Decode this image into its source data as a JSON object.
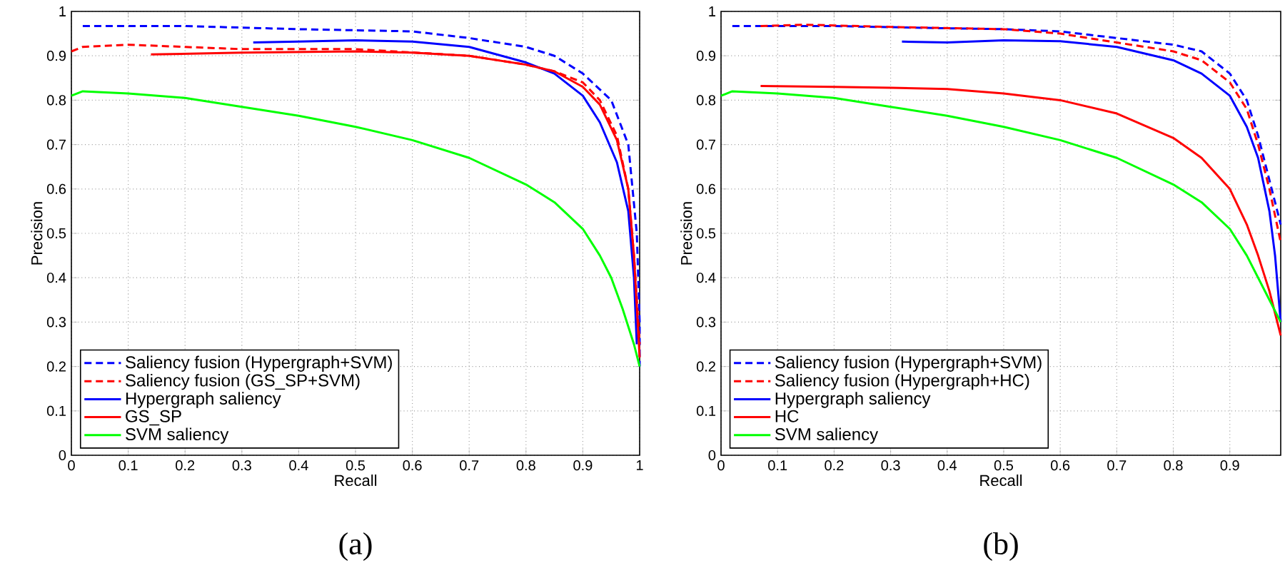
{
  "chart_data": [
    {
      "type": "line",
      "annotations": [
        "(a)"
      ],
      "xlabel": "Recall",
      "ylabel": "Precision",
      "xlim": [
        0,
        1
      ],
      "ylim": [
        0,
        1
      ],
      "xticks": [
        0,
        0.1,
        0.2,
        0.3,
        0.4,
        0.5,
        0.6,
        0.7,
        0.8,
        0.9,
        1
      ],
      "yticks": [
        0,
        0.1,
        0.2,
        0.3,
        0.4,
        0.5,
        0.6,
        0.7,
        0.8,
        0.9,
        1
      ],
      "grid": true,
      "legend": "bottom left",
      "series": [
        {
          "name": "Saliency fusion (Hypergraph+SVM)",
          "color": "#0000ff",
          "line_style": "dashed",
          "x": [
            0.02,
            0.2,
            0.4,
            0.6,
            0.7,
            0.8,
            0.85,
            0.9,
            0.95,
            0.98,
            0.995,
            1.0,
            1.0
          ],
          "values": [
            0.967,
            0.967,
            0.96,
            0.955,
            0.94,
            0.92,
            0.9,
            0.86,
            0.8,
            0.7,
            0.5,
            0.3,
            0.2
          ]
        },
        {
          "name": "Saliency fusion (GS_SP+SVM)",
          "color": "#ff0000",
          "line_style": "dashed",
          "x": [
            0,
            0.02,
            0.1,
            0.2,
            0.3,
            0.5,
            0.7,
            0.8,
            0.85,
            0.9,
            0.93,
            0.96,
            0.98,
            0.99,
            1.0
          ],
          "values": [
            0.91,
            0.92,
            0.925,
            0.92,
            0.915,
            0.915,
            0.9,
            0.88,
            0.865,
            0.84,
            0.8,
            0.72,
            0.6,
            0.45,
            0.25
          ]
        },
        {
          "name": "Hypergraph saliency",
          "color": "#0000ff",
          "line_style": "solid",
          "x": [
            0.32,
            0.4,
            0.5,
            0.6,
            0.7,
            0.8,
            0.85,
            0.9,
            0.93,
            0.96,
            0.98,
            0.99,
            0.995
          ],
          "values": [
            0.93,
            0.932,
            0.935,
            0.932,
            0.92,
            0.885,
            0.86,
            0.81,
            0.75,
            0.66,
            0.55,
            0.4,
            0.25
          ]
        },
        {
          "name": "GS_SP",
          "color": "#ff0000",
          "line_style": "solid",
          "x": [
            0.14,
            0.3,
            0.5,
            0.6,
            0.7,
            0.8,
            0.85,
            0.9,
            0.93,
            0.96,
            0.98,
            0.99,
            1.0
          ],
          "values": [
            0.903,
            0.907,
            0.91,
            0.907,
            0.9,
            0.88,
            0.865,
            0.83,
            0.79,
            0.71,
            0.6,
            0.45,
            0.22
          ]
        },
        {
          "name": "SVM saliency",
          "color": "#00ff00",
          "line_style": "solid",
          "x": [
            0,
            0.02,
            0.1,
            0.2,
            0.3,
            0.4,
            0.5,
            0.6,
            0.7,
            0.8,
            0.85,
            0.9,
            0.93,
            0.95,
            0.97,
            0.99,
            1.0
          ],
          "values": [
            0.81,
            0.82,
            0.815,
            0.805,
            0.785,
            0.765,
            0.74,
            0.71,
            0.67,
            0.61,
            0.57,
            0.51,
            0.45,
            0.4,
            0.33,
            0.25,
            0.2
          ]
        }
      ]
    },
    {
      "type": "line",
      "annotations": [
        "(b)"
      ],
      "xlabel": "Recall",
      "ylabel": "Precision",
      "xlim": [
        0,
        0.99
      ],
      "ylim": [
        0,
        1
      ],
      "xticks": [
        0,
        0.1,
        0.2,
        0.3,
        0.4,
        0.5,
        0.6,
        0.7,
        0.8,
        0.9
      ],
      "yticks": [
        0,
        0.1,
        0.2,
        0.3,
        0.4,
        0.5,
        0.6,
        0.7,
        0.8,
        0.9,
        1
      ],
      "grid": true,
      "legend": "bottom left",
      "series": [
        {
          "name": "Saliency fusion (Hypergraph+SVM)",
          "color": "#0000ff",
          "line_style": "dashed",
          "x": [
            0.02,
            0.2,
            0.4,
            0.5,
            0.6,
            0.7,
            0.8,
            0.85,
            0.9,
            0.93,
            0.95,
            0.97,
            0.99
          ],
          "values": [
            0.967,
            0.967,
            0.962,
            0.96,
            0.955,
            0.94,
            0.925,
            0.91,
            0.86,
            0.8,
            0.72,
            0.62,
            0.52
          ]
        },
        {
          "name": "Saliency fusion (Hypergraph+HC)",
          "color": "#ff0000",
          "line_style": "dashed",
          "x": [
            0.07,
            0.15,
            0.3,
            0.5,
            0.6,
            0.7,
            0.8,
            0.85,
            0.9,
            0.93,
            0.95,
            0.97,
            0.99
          ],
          "values": [
            0.967,
            0.97,
            0.965,
            0.96,
            0.95,
            0.93,
            0.91,
            0.89,
            0.84,
            0.78,
            0.7,
            0.6,
            0.48
          ]
        },
        {
          "name": "Hypergraph saliency",
          "color": "#0000ff",
          "line_style": "solid",
          "x": [
            0.32,
            0.4,
            0.5,
            0.6,
            0.7,
            0.8,
            0.85,
            0.9,
            0.93,
            0.95,
            0.97,
            0.98,
            0.99
          ],
          "values": [
            0.932,
            0.93,
            0.935,
            0.933,
            0.92,
            0.89,
            0.86,
            0.81,
            0.74,
            0.67,
            0.55,
            0.45,
            0.3
          ]
        },
        {
          "name": "HC",
          "color": "#ff0000",
          "line_style": "solid",
          "x": [
            0.07,
            0.2,
            0.3,
            0.4,
            0.5,
            0.6,
            0.7,
            0.8,
            0.85,
            0.9,
            0.93,
            0.95,
            0.97,
            0.99
          ],
          "values": [
            0.832,
            0.83,
            0.828,
            0.825,
            0.815,
            0.8,
            0.77,
            0.715,
            0.67,
            0.6,
            0.52,
            0.45,
            0.37,
            0.27
          ]
        },
        {
          "name": "SVM saliency",
          "color": "#00ff00",
          "line_style": "solid",
          "x": [
            0,
            0.02,
            0.1,
            0.2,
            0.3,
            0.4,
            0.5,
            0.6,
            0.7,
            0.8,
            0.85,
            0.9,
            0.93,
            0.95,
            0.97,
            0.99
          ],
          "values": [
            0.81,
            0.82,
            0.815,
            0.805,
            0.785,
            0.765,
            0.74,
            0.71,
            0.67,
            0.61,
            0.57,
            0.51,
            0.45,
            0.4,
            0.35,
            0.3
          ]
        }
      ]
    }
  ]
}
